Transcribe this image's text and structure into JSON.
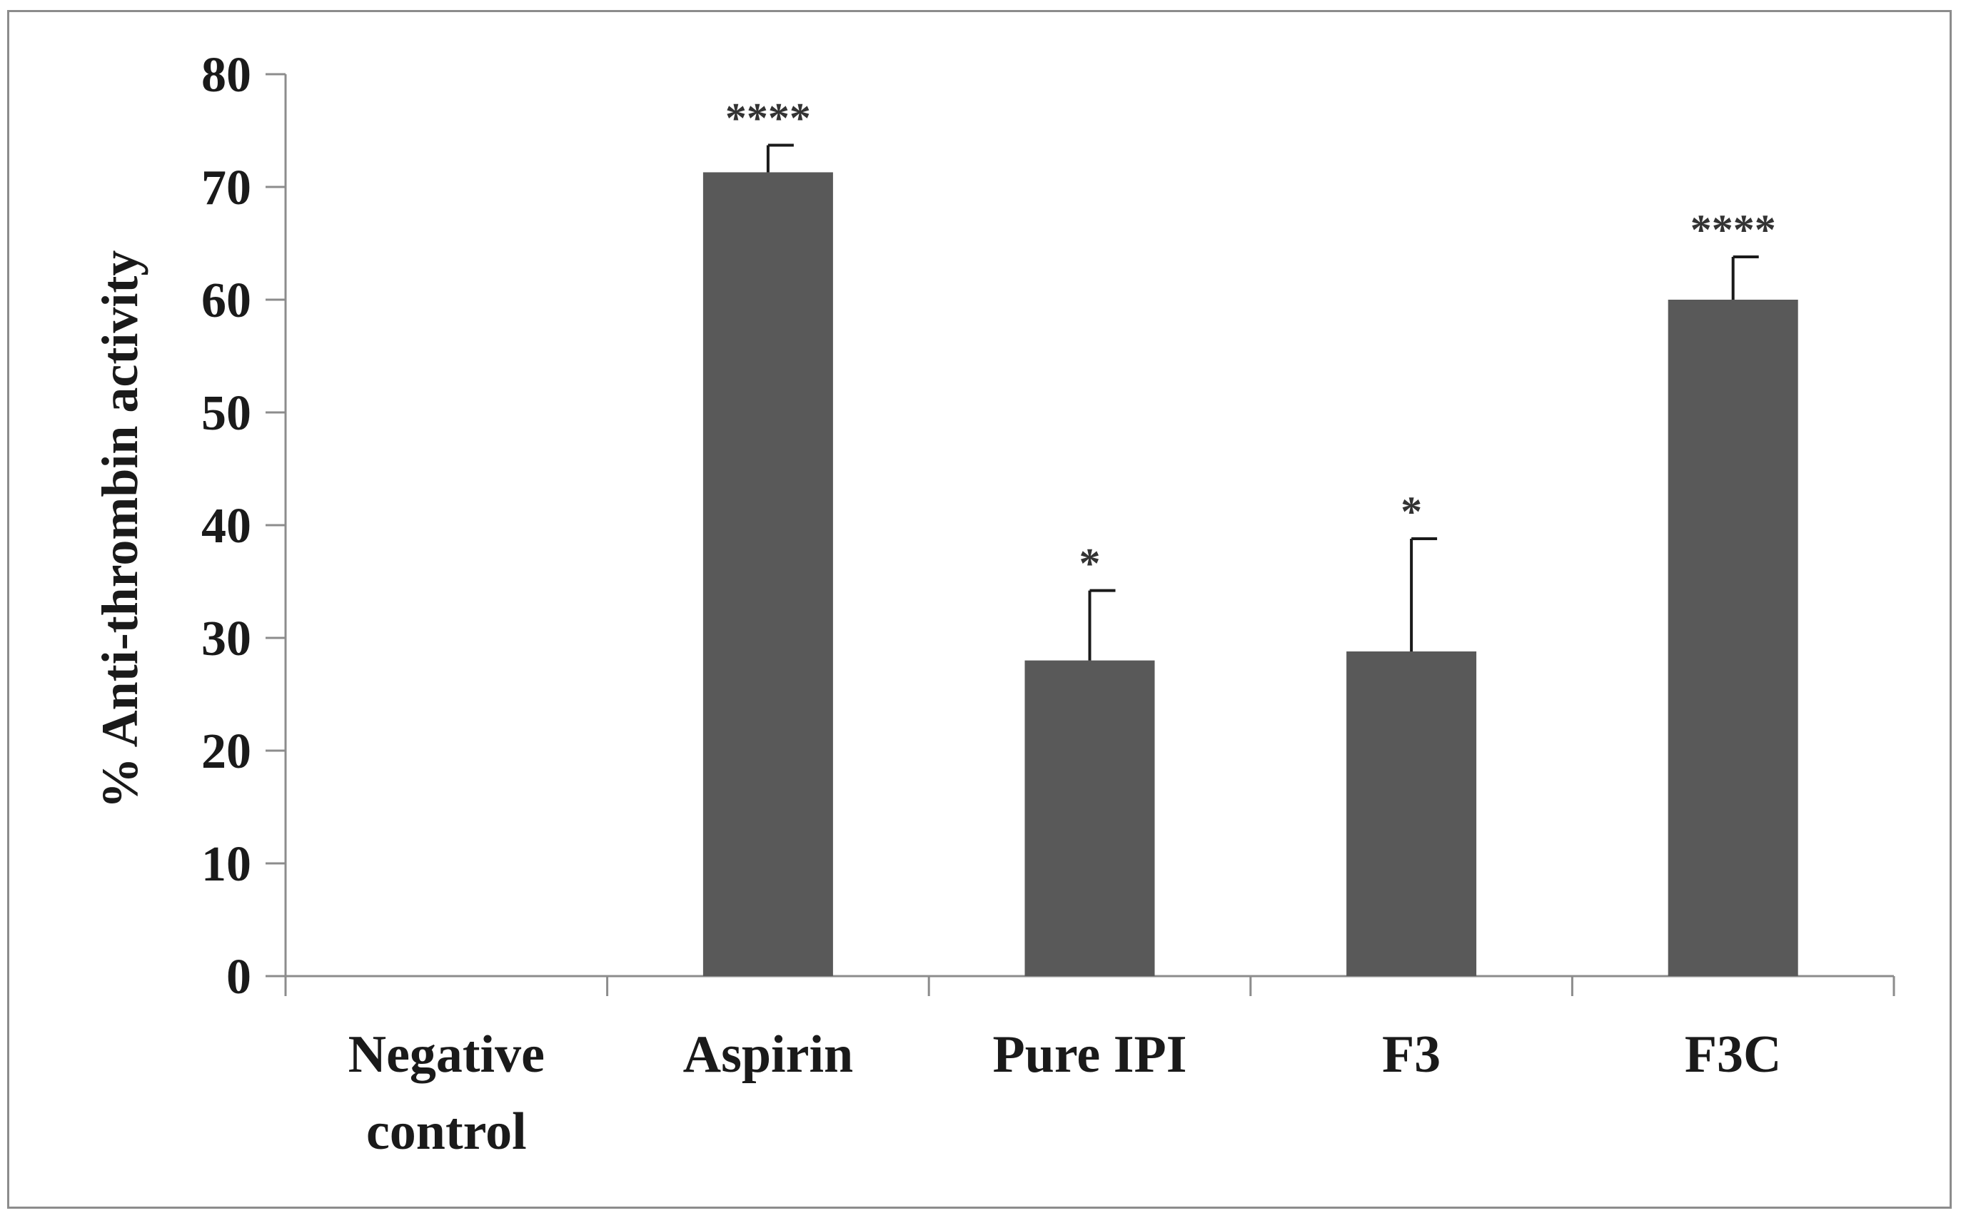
{
  "chart_data": {
    "type": "bar",
    "categories": [
      [
        "Negative",
        "control"
      ],
      [
        "Aspirin"
      ],
      [
        "Pure IPI"
      ],
      [
        "F3"
      ],
      [
        "F3C"
      ]
    ],
    "values": [
      0,
      71.3,
      28.0,
      28.8,
      60.0
    ],
    "errors": [
      0,
      2.4,
      6.2,
      10.0,
      3.8
    ],
    "significance": [
      "",
      "****",
      "*",
      "*",
      "****"
    ],
    "ylabel": "% Anti-thrombin  activity",
    "ylim": [
      0,
      80
    ],
    "yticks": [
      "0",
      "10",
      "20",
      "30",
      "40",
      "50",
      "60",
      "70",
      "80"
    ],
    "grid": false,
    "legend": "none",
    "colors": {
      "bar": "#595959",
      "axis": "#8c8c8c",
      "error": "#1a1a1a"
    }
  }
}
